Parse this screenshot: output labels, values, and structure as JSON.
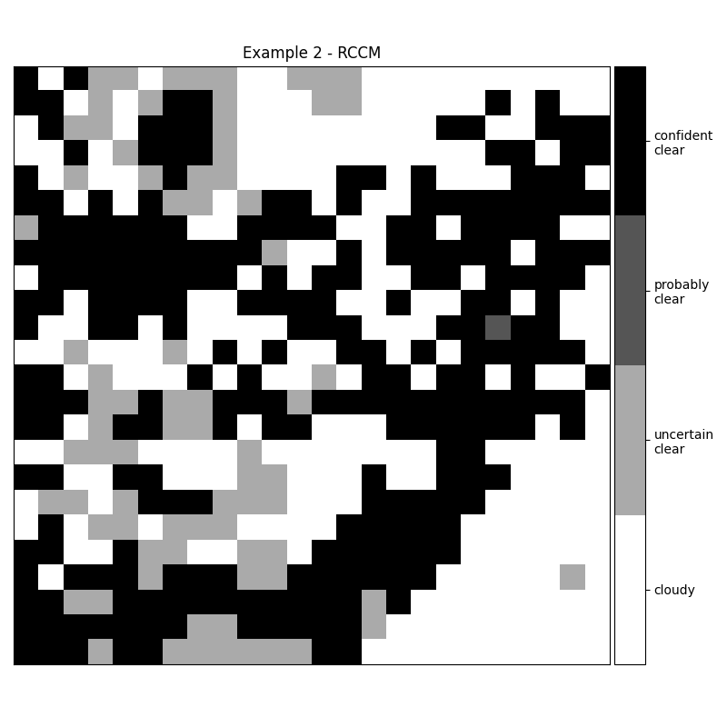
{
  "chart_data": {
    "type": "heatmap",
    "title": "Example 2 - RCCM",
    "tick_labels": false,
    "colors": [
      "#ffffff",
      "#aaaaaa",
      "#555555",
      "#000000"
    ],
    "colorbar_range": [
      -0.5,
      3.5
    ],
    "colorbar_ticks": [
      {
        "value": 0,
        "label": "cloudy"
      },
      {
        "value": 1,
        "label": "uncertain\nclear"
      },
      {
        "value": 2,
        "label": "probably\nclear"
      },
      {
        "value": 3,
        "label": "confident\nclear"
      }
    ],
    "cells": [
      [
        3,
        0,
        3,
        1,
        1,
        0,
        1,
        1,
        1,
        0,
        0,
        1,
        1,
        1,
        0,
        0,
        0,
        0,
        0,
        0,
        0,
        0,
        0,
        0
      ],
      [
        3,
        3,
        0,
        1,
        0,
        1,
        3,
        3,
        1,
        0,
        0,
        0,
        1,
        1,
        0,
        0,
        0,
        0,
        0,
        3,
        0,
        3,
        0,
        0
      ],
      [
        0,
        3,
        1,
        1,
        0,
        3,
        3,
        3,
        1,
        0,
        0,
        0,
        0,
        0,
        0,
        0,
        0,
        3,
        3,
        0,
        0,
        3,
        3,
        3
      ],
      [
        0,
        0,
        3,
        0,
        1,
        3,
        3,
        3,
        1,
        0,
        0,
        0,
        0,
        0,
        0,
        0,
        0,
        0,
        0,
        3,
        3,
        0,
        3,
        3
      ],
      [
        3,
        0,
        1,
        0,
        0,
        1,
        3,
        1,
        1,
        0,
        0,
        0,
        0,
        3,
        3,
        0,
        3,
        0,
        0,
        0,
        3,
        3,
        3,
        0
      ],
      [
        3,
        3,
        0,
        3,
        0,
        3,
        1,
        1,
        0,
        1,
        3,
        3,
        0,
        3,
        0,
        0,
        3,
        3,
        3,
        3,
        3,
        3,
        3,
        3
      ],
      [
        1,
        3,
        3,
        3,
        3,
        3,
        3,
        0,
        0,
        3,
        3,
        3,
        3,
        0,
        0,
        3,
        3,
        0,
        3,
        3,
        3,
        3,
        0,
        0
      ],
      [
        3,
        3,
        3,
        3,
        3,
        3,
        3,
        3,
        3,
        3,
        1,
        0,
        0,
        3,
        0,
        3,
        3,
        3,
        3,
        3,
        0,
        3,
        3,
        3
      ],
      [
        0,
        3,
        3,
        3,
        3,
        3,
        3,
        3,
        3,
        0,
        3,
        0,
        3,
        3,
        0,
        0,
        3,
        3,
        0,
        3,
        3,
        3,
        3,
        0
      ],
      [
        3,
        3,
        0,
        3,
        3,
        3,
        3,
        0,
        0,
        3,
        3,
        3,
        3,
        0,
        0,
        3,
        0,
        0,
        3,
        3,
        0,
        3,
        0,
        0
      ],
      [
        3,
        0,
        0,
        3,
        3,
        0,
        3,
        0,
        0,
        0,
        0,
        3,
        3,
        3,
        0,
        0,
        0,
        3,
        3,
        2,
        3,
        3,
        0,
        0
      ],
      [
        0,
        0,
        1,
        0,
        0,
        0,
        1,
        0,
        3,
        0,
        3,
        0,
        0,
        3,
        3,
        0,
        3,
        0,
        3,
        3,
        3,
        3,
        3,
        0
      ],
      [
        3,
        3,
        0,
        1,
        0,
        0,
        0,
        3,
        0,
        3,
        0,
        0,
        1,
        0,
        3,
        3,
        0,
        3,
        3,
        0,
        3,
        0,
        0,
        3
      ],
      [
        3,
        3,
        3,
        1,
        1,
        3,
        1,
        1,
        3,
        3,
        3,
        1,
        3,
        3,
        3,
        3,
        3,
        3,
        3,
        3,
        3,
        3,
        3,
        0
      ],
      [
        3,
        3,
        0,
        1,
        3,
        3,
        1,
        1,
        3,
        0,
        3,
        3,
        0,
        0,
        0,
        3,
        3,
        3,
        3,
        3,
        3,
        0,
        3,
        0
      ],
      [
        0,
        0,
        1,
        1,
        1,
        0,
        0,
        0,
        0,
        1,
        0,
        0,
        0,
        0,
        0,
        0,
        0,
        3,
        3,
        0,
        0,
        0,
        0,
        0
      ],
      [
        3,
        3,
        0,
        0,
        3,
        3,
        0,
        0,
        0,
        1,
        1,
        0,
        0,
        0,
        3,
        0,
        0,
        3,
        3,
        3,
        0,
        0,
        0,
        0
      ],
      [
        0,
        1,
        1,
        0,
        1,
        3,
        3,
        3,
        1,
        1,
        1,
        0,
        0,
        0,
        3,
        3,
        3,
        3,
        3,
        0,
        0,
        0,
        0,
        0
      ],
      [
        0,
        3,
        0,
        1,
        1,
        0,
        1,
        1,
        1,
        0,
        0,
        0,
        0,
        3,
        3,
        3,
        3,
        3,
        0,
        0,
        0,
        0,
        0,
        0
      ],
      [
        3,
        3,
        0,
        0,
        3,
        1,
        1,
        0,
        0,
        1,
        1,
        0,
        3,
        3,
        3,
        3,
        3,
        3,
        0,
        0,
        0,
        0,
        0,
        0
      ],
      [
        3,
        0,
        3,
        3,
        3,
        1,
        3,
        3,
        3,
        1,
        1,
        3,
        3,
        3,
        3,
        3,
        3,
        0,
        0,
        0,
        0,
        0,
        1,
        0
      ],
      [
        3,
        3,
        1,
        1,
        3,
        3,
        3,
        3,
        3,
        3,
        3,
        3,
        3,
        3,
        1,
        3,
        0,
        0,
        0,
        0,
        0,
        0,
        0,
        0
      ],
      [
        3,
        3,
        3,
        3,
        3,
        3,
        3,
        1,
        1,
        3,
        3,
        3,
        3,
        3,
        1,
        0,
        0,
        0,
        0,
        0,
        0,
        0,
        0,
        0
      ],
      [
        3,
        3,
        3,
        1,
        3,
        3,
        1,
        1,
        1,
        1,
        1,
        1,
        3,
        3,
        0,
        0,
        0,
        0,
        0,
        0,
        0,
        0,
        0,
        0
      ]
    ]
  }
}
